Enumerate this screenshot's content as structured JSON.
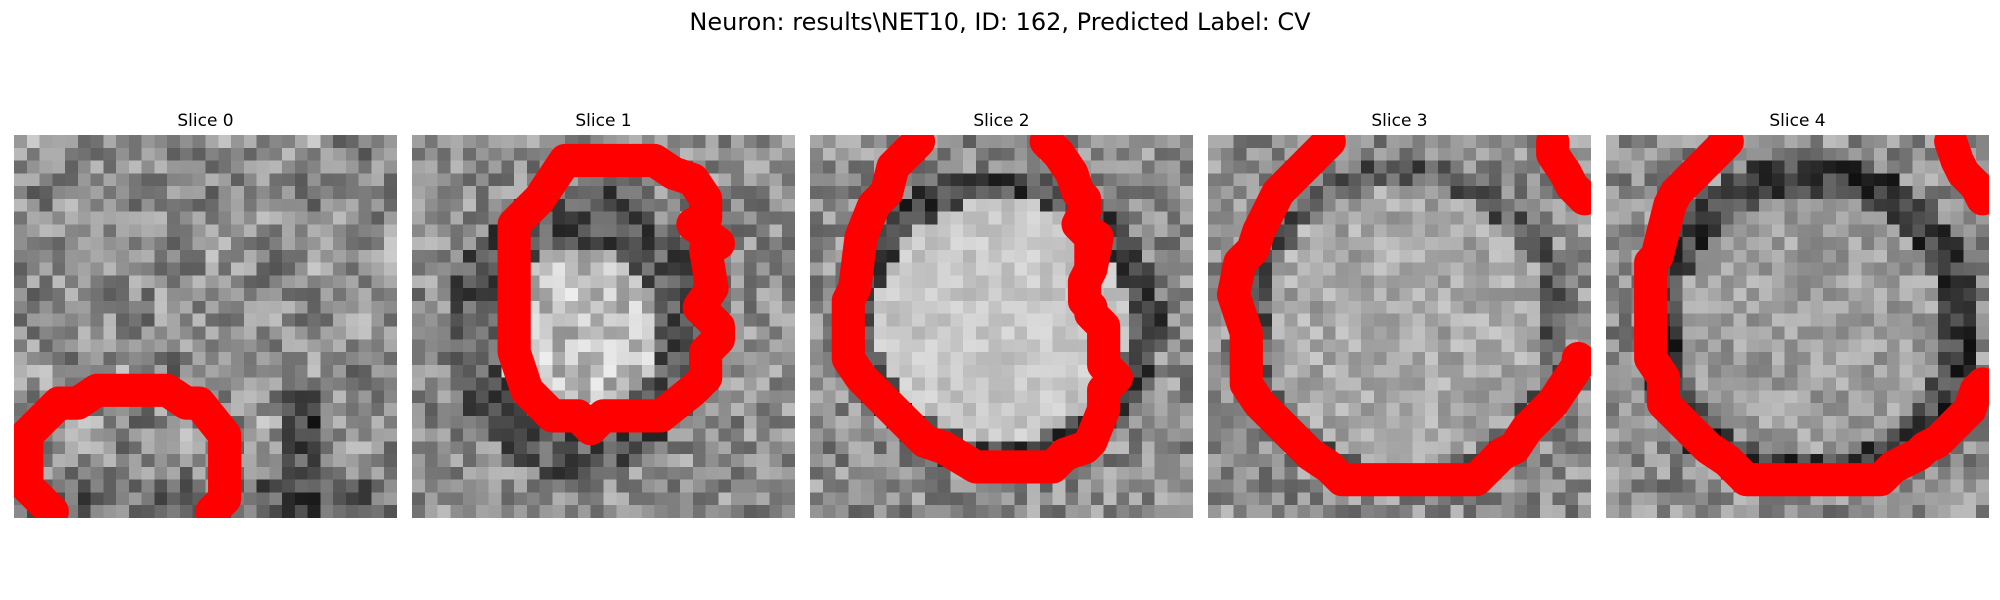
{
  "figure": {
    "title": "Neuron: results\\NET10, ID: 162, Predicted Label: CV",
    "contour_color": "#ff0000",
    "colormap": "gray",
    "axes_visible": false
  },
  "panels": [
    {
      "title": "Slice 0",
      "icon": "grayscale-slice-image",
      "pattern": "texture"
    },
    {
      "title": "Slice 1",
      "icon": "grayscale-slice-image",
      "pattern": "ring"
    },
    {
      "title": "Slice 2",
      "icon": "grayscale-slice-image",
      "pattern": "disk"
    },
    {
      "title": "Slice 3",
      "icon": "grayscale-slice-image",
      "pattern": "faint-disk"
    },
    {
      "title": "Slice 4",
      "icon": "grayscale-slice-image",
      "pattern": "dark-ring"
    }
  ]
}
